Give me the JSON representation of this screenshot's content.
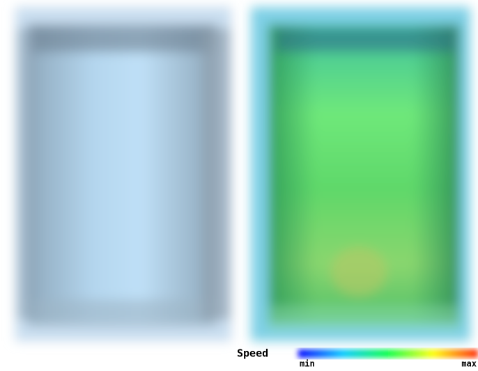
{
  "legend": {
    "title": "Speed",
    "min_label": "min",
    "max_label": "max"
  }
}
